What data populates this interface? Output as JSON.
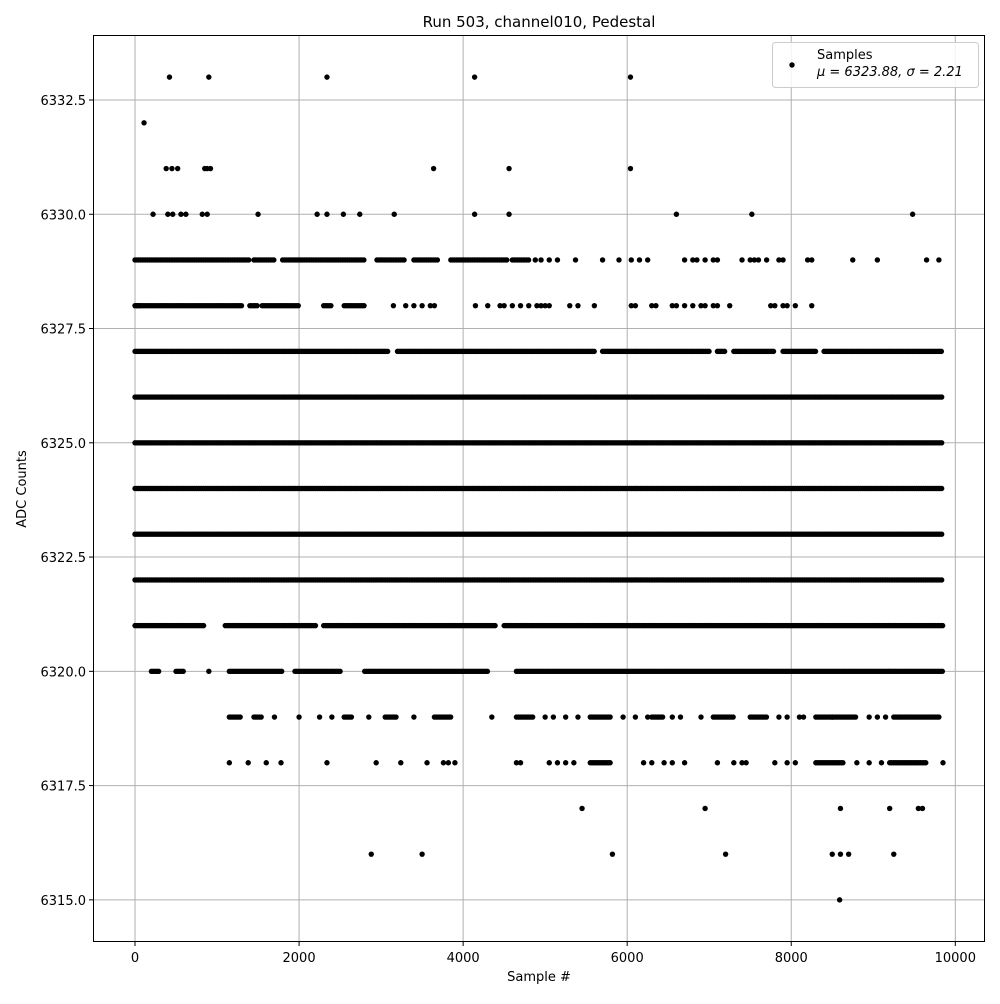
{
  "chart_data": {
    "type": "scatter",
    "title": "Run 503, channel010, Pedestal",
    "xlabel": "Sample #",
    "ylabel": "ADC Counts",
    "xlim": [
      -500,
      10350
    ],
    "ylim": [
      6314.1,
      6333.9
    ],
    "x_ticks": [
      0,
      2000,
      4000,
      6000,
      8000,
      10000
    ],
    "y_ticks": [
      6315.0,
      6317.5,
      6320.0,
      6322.5,
      6325.0,
      6327.5,
      6330.0,
      6332.5
    ],
    "x_tick_labels": [
      "0",
      "2000",
      "4000",
      "6000",
      "8000",
      "10000"
    ],
    "y_tick_labels": [
      "6315.0",
      "6317.5",
      "6320.0",
      "6322.5",
      "6325.0",
      "6327.5",
      "6330.0",
      "6332.5"
    ],
    "grid": true,
    "legend": {
      "placement": "top-right",
      "entries": [
        {
          "label": "Samples",
          "detail": "μ = 6323.88, σ = 2.21"
        }
      ]
    },
    "marker_color": "#000000",
    "sample_count": 9850,
    "series": [
      {
        "name": "Samples",
        "levels": [
          {
            "y": 6333,
            "x": [
              420,
              900,
              2340,
              4140,
              6040
            ]
          },
          {
            "y": 6332,
            "x": [
              110
            ]
          },
          {
            "y": 6331,
            "x": [
              380,
              450,
              520,
              850,
              880,
              920,
              3640,
              4560,
              6040
            ]
          },
          {
            "y": 6330,
            "x": [
              220,
              400,
              460,
              560,
              620,
              820,
              880,
              1500,
              2220,
              2340,
              2540,
              2740,
              3160,
              4140,
              4560,
              6600,
              7520,
              9480
            ]
          },
          {
            "y": 6329,
            "ranges": [
              [
                0,
                1400
              ],
              [
                1450,
                1700
              ],
              [
                1800,
                2800
              ],
              [
                2950,
                3300
              ],
              [
                3400,
                3700
              ],
              [
                3850,
                4550
              ],
              [
                4600,
                4800
              ]
            ],
            "x": [
              4880,
              4950,
              5050,
              5150,
              5370,
              5700,
              5900,
              6050,
              6150,
              6250,
              6700,
              6800,
              6850,
              6950,
              7050,
              7100,
              7400,
              7500,
              7550,
              7600,
              7700,
              7850,
              7900,
              8200,
              8250,
              8750,
              9050,
              9650,
              9800
            ]
          },
          {
            "y": 6328,
            "ranges": [
              [
                0,
                1300
              ],
              [
                1400,
                1500
              ],
              [
                1550,
                2000
              ],
              [
                2300,
                2400
              ],
              [
                2550,
                2800
              ]
            ],
            "x": [
              20,
              60,
              3150,
              3300,
              3400,
              3500,
              3600,
              3650,
              4150,
              4300,
              4450,
              4500,
              4600,
              4700,
              4800,
              4900,
              4950,
              5000,
              5050,
              5300,
              5400,
              5600,
              6050,
              6100,
              6300,
              6350,
              6550,
              6600,
              6700,
              6800,
              6900,
              6950,
              7050,
              7100,
              7250,
              7750,
              7800,
              7900,
              7950,
              8050,
              8250
            ]
          },
          {
            "y": 6327,
            "ranges": [
              [
                0,
                3100
              ],
              [
                3200,
                5600
              ],
              [
                5700,
                7000
              ],
              [
                7100,
                7200
              ],
              [
                7300,
                7800
              ],
              [
                7900,
                8300
              ],
              [
                8400,
                9850
              ]
            ]
          },
          {
            "y": 6326,
            "ranges": [
              [
                0,
                9850
              ]
            ]
          },
          {
            "y": 6325,
            "ranges": [
              [
                0,
                9850
              ]
            ]
          },
          {
            "y": 6324,
            "ranges": [
              [
                0,
                9850
              ]
            ]
          },
          {
            "y": 6323,
            "ranges": [
              [
                0,
                9850
              ]
            ]
          },
          {
            "y": 6322,
            "ranges": [
              [
                0,
                9850
              ]
            ]
          },
          {
            "y": 6321,
            "ranges": [
              [
                0,
                850
              ],
              [
                1100,
                2200
              ],
              [
                2300,
                4400
              ],
              [
                4500,
                9850
              ]
            ]
          },
          {
            "y": 6320,
            "ranges": [
              [
                200,
                300
              ],
              [
                500,
                600
              ],
              [
                1150,
                1800
              ],
              [
                1950,
                2500
              ],
              [
                2800,
                4300
              ],
              [
                4650,
                9850
              ]
            ],
            "x": [
              900
            ]
          },
          {
            "y": 6319,
            "ranges": [
              [
                1150,
                1300
              ],
              [
                1450,
                1550
              ],
              [
                2550,
                2650
              ],
              [
                3050,
                3200
              ],
              [
                3650,
                3850
              ],
              [
                4650,
                4850
              ],
              [
                5550,
                5800
              ],
              [
                6300,
                6450
              ],
              [
                7050,
                7300
              ],
              [
                7500,
                7700
              ],
              [
                8300,
                8800
              ],
              [
                9250,
                9800
              ]
            ],
            "x": [
              1700,
              2000,
              2250,
              2400,
              2850,
              3400,
              4350,
              5000,
              5100,
              5250,
              5400,
              5950,
              6100,
              6250,
              6550,
              6650,
              6900,
              7850,
              7950,
              8100,
              8150,
              8500,
              8950,
              9050,
              9150
            ]
          },
          {
            "y": 6318,
            "ranges": [
              [
                5550,
                5800
              ],
              [
                8300,
                8650
              ],
              [
                9200,
                9650
              ]
            ],
            "x": [
              1150,
              1380,
              1600,
              1780,
              2340,
              2940,
              3240,
              3560,
              3760,
              3820,
              3900,
              4650,
              4700,
              5050,
              5150,
              5250,
              5350,
              6200,
              6300,
              6450,
              6550,
              6700,
              7100,
              7300,
              7400,
              7450,
              7800,
              7950,
              8050,
              8800,
              8950,
              9100,
              9850
            ]
          },
          {
            "y": 6317,
            "x": [
              5450,
              6950,
              8600,
              9200,
              9550,
              9600
            ]
          },
          {
            "y": 6316,
            "x": [
              2880,
              3500,
              5820,
              7200,
              8500,
              8600,
              8700,
              9250
            ]
          },
          {
            "y": 6315,
            "x": [
              8590
            ]
          }
        ]
      }
    ]
  }
}
